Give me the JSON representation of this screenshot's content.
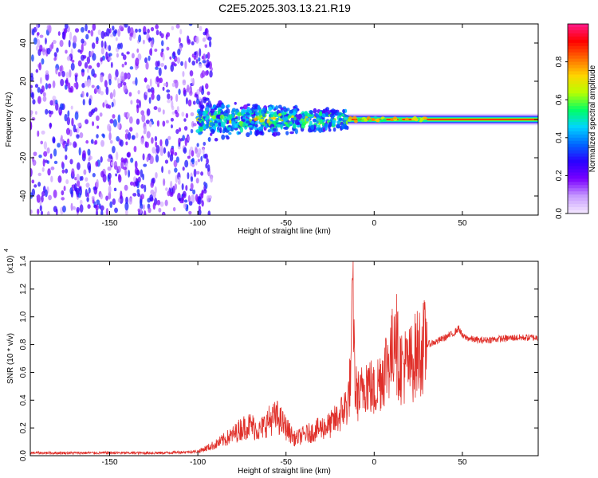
{
  "title": "C2E5.2025.303.13.21.R19",
  "chart_data": [
    {
      "type": "heatmap",
      "title": "C2E5.2025.303.13.21.R19",
      "xlabel": "Height of straight line (km)",
      "ylabel": "Frequency (Hz)",
      "xlim": [
        -195,
        93
      ],
      "ylim": [
        -50,
        50
      ],
      "xticks": [
        -150,
        -100,
        -50,
        0,
        50
      ],
      "yticks": [
        -40,
        -20,
        0,
        20,
        40
      ],
      "colorbar": {
        "label": "Normalized spectral amplitude",
        "range": [
          0,
          1
        ],
        "ticks": [
          0.0,
          0.2,
          0.4,
          0.6,
          0.8
        ],
        "colormap": [
          "#f4e8ff",
          "#c79bff",
          "#7a00ff",
          "#2a00ff",
          "#0066ff",
          "#00d4ff",
          "#00ff66",
          "#b8ff00",
          "#ffd400",
          "#ff6a00",
          "#ff0000",
          "#ff1a8c"
        ]
      },
      "regions": [
        {
          "x": [
            -195,
            -100
          ],
          "freq": [
            -50,
            50
          ],
          "amplitude": "low (0.05-0.3), diffuse noise"
        },
        {
          "x": [
            -100,
            -15
          ],
          "freq": [
            -12,
            12
          ],
          "amplitude": "0.3-0.7, spread around 0 Hz"
        },
        {
          "x": [
            -15,
            93
          ],
          "freq": [
            -1.5,
            1.5
          ],
          "amplitude": "0.8-1.0, narrow line at 0 Hz"
        }
      ]
    },
    {
      "type": "line",
      "xlabel": "Height of straight line (km)",
      "ylabel": "SNR (10 * v/v)",
      "yscale_label": "(x10",
      "yscale_exp": "4",
      "xlim": [
        -195,
        93
      ],
      "ylim": [
        0,
        1.4
      ],
      "xticks": [
        -150,
        -100,
        -50,
        0,
        50
      ],
      "yticks": [
        0.0,
        0.2,
        0.4,
        0.6,
        0.8,
        1.0,
        1.2,
        1.4
      ],
      "color": "#e0302a",
      "series": [
        {
          "x": [
            -195,
            -120,
            -100,
            -90,
            -80,
            -75,
            -70,
            -65,
            -60,
            -55,
            -50,
            -45,
            -40,
            -35,
            -30,
            -25,
            -20,
            -15,
            -13,
            -12,
            -11,
            -10,
            -8,
            -5,
            -2,
            0,
            3,
            5,
            8,
            10,
            11,
            12,
            13,
            15,
            20,
            25,
            30,
            35,
            40,
            45,
            48,
            50,
            55,
            60,
            70,
            80,
            93
          ],
          "y": [
            0.02,
            0.02,
            0.03,
            0.08,
            0.15,
            0.2,
            0.22,
            0.18,
            0.25,
            0.28,
            0.2,
            0.12,
            0.15,
            0.17,
            0.2,
            0.22,
            0.28,
            0.38,
            0.6,
            1.4,
            0.5,
            0.45,
            0.42,
            0.55,
            0.5,
            0.45,
            0.55,
            0.6,
            0.7,
            0.72,
            0.85,
            1.05,
            0.75,
            0.65,
            0.65,
            0.75,
            0.8,
            0.82,
            0.85,
            0.88,
            0.92,
            0.86,
            0.84,
            0.83,
            0.84,
            0.85,
            0.85
          ]
        }
      ]
    }
  ]
}
